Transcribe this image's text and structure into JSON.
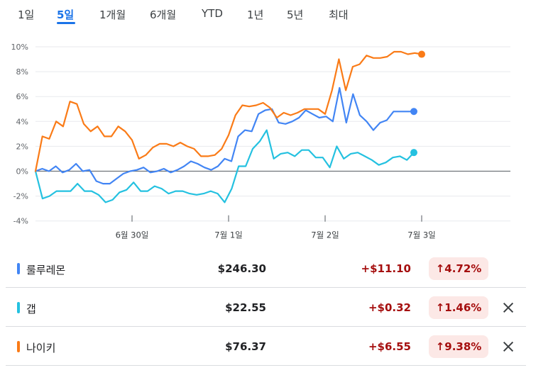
{
  "tabs": [
    {
      "label": "1일",
      "active": false
    },
    {
      "label": "5일",
      "active": true
    },
    {
      "label": "1개월",
      "active": false
    },
    {
      "label": "6개월",
      "active": false
    },
    {
      "label": "YTD",
      "active": false
    },
    {
      "label": "1년",
      "active": false
    },
    {
      "label": "5년",
      "active": false
    },
    {
      "label": "최대",
      "active": false
    }
  ],
  "chart_data": {
    "type": "line",
    "yticks": [
      "10%",
      "8%",
      "6%",
      "4%",
      "2%",
      "0%",
      "-2%",
      "-4%"
    ],
    "ylim": [
      -4,
      10
    ],
    "xticks": [
      "6월 30일",
      "7월 1일",
      "7월 2일",
      "7월 3일"
    ],
    "series": [
      {
        "name": "룰루레몬",
        "color": "#4285f4",
        "values": [
          0,
          0.2,
          0,
          0.4,
          -0.1,
          0.1,
          0.6,
          0,
          0.1,
          -0.8,
          -1,
          -1,
          -0.6,
          -0.2,
          0,
          0.1,
          0.3,
          -0.1,
          0,
          0.2,
          -0.1,
          0.1,
          0.4,
          0.8,
          0.6,
          0.3,
          0.1,
          0.4,
          1,
          0.8,
          2.8,
          3.3,
          3.2,
          4.6,
          4.9,
          5,
          3.9,
          3.8,
          4,
          4.3,
          4.9,
          4.6,
          4.3,
          4.4,
          4,
          6.7,
          3.9,
          6.2,
          4.5,
          4,
          3.3,
          3.9,
          4.1,
          4.8,
          4.8,
          4.8,
          4.8
        ]
      },
      {
        "name": "갭",
        "color": "#24c1e0",
        "values": [
          0,
          -2.2,
          -2,
          -1.6,
          -1.6,
          -1.6,
          -1,
          -1.6,
          -1.6,
          -1.9,
          -2.5,
          -2.3,
          -1.7,
          -1.5,
          -0.9,
          -1.6,
          -1.6,
          -1.2,
          -1.4,
          -1.8,
          -1.6,
          -1.6,
          -1.8,
          -1.9,
          -1.8,
          -1.6,
          -1.8,
          -2.5,
          -1.4,
          0.4,
          0.4,
          1.8,
          2.4,
          3.3,
          1,
          1.4,
          1.5,
          1.2,
          1.7,
          1.7,
          1.1,
          1.1,
          0.3,
          2,
          1,
          1.4,
          1.5,
          1.2,
          0.9,
          0.5,
          0.7,
          1.1,
          1.2,
          0.9,
          1.5
        ]
      },
      {
        "name": "나이키",
        "color": "#fa7b17",
        "values": [
          0,
          2.8,
          2.6,
          4,
          3.6,
          5.6,
          5.4,
          3.8,
          3.2,
          3.6,
          2.8,
          2.8,
          3.6,
          3.2,
          2.5,
          1,
          1.3,
          1.9,
          2.2,
          2.2,
          2,
          2.3,
          2,
          1.8,
          1.2,
          1.2,
          1.3,
          1.8,
          2.9,
          4.5,
          5.3,
          5.2,
          5.3,
          5.5,
          5.1,
          4.3,
          4.7,
          4.5,
          4.7,
          5,
          5,
          5,
          4.6,
          6.5,
          9,
          6.5,
          8.4,
          8.6,
          9.3,
          9.1,
          9.1,
          9.2,
          9.6,
          9.6,
          9.4,
          9.5,
          9.4
        ]
      }
    ]
  },
  "stocks": [
    {
      "name": "룰루레몬",
      "color": "#4285f4",
      "price": "$246.30",
      "change": "+$11.10",
      "percent": "4.72%",
      "removable": false
    },
    {
      "name": "갭",
      "color": "#24c1e0",
      "price": "$22.55",
      "change": "+$0.32",
      "percent": "1.46%",
      "removable": true
    },
    {
      "name": "나이키",
      "color": "#fa7b17",
      "price": "$76.37",
      "change": "+$6.55",
      "percent": "9.38%",
      "removable": true
    }
  ]
}
